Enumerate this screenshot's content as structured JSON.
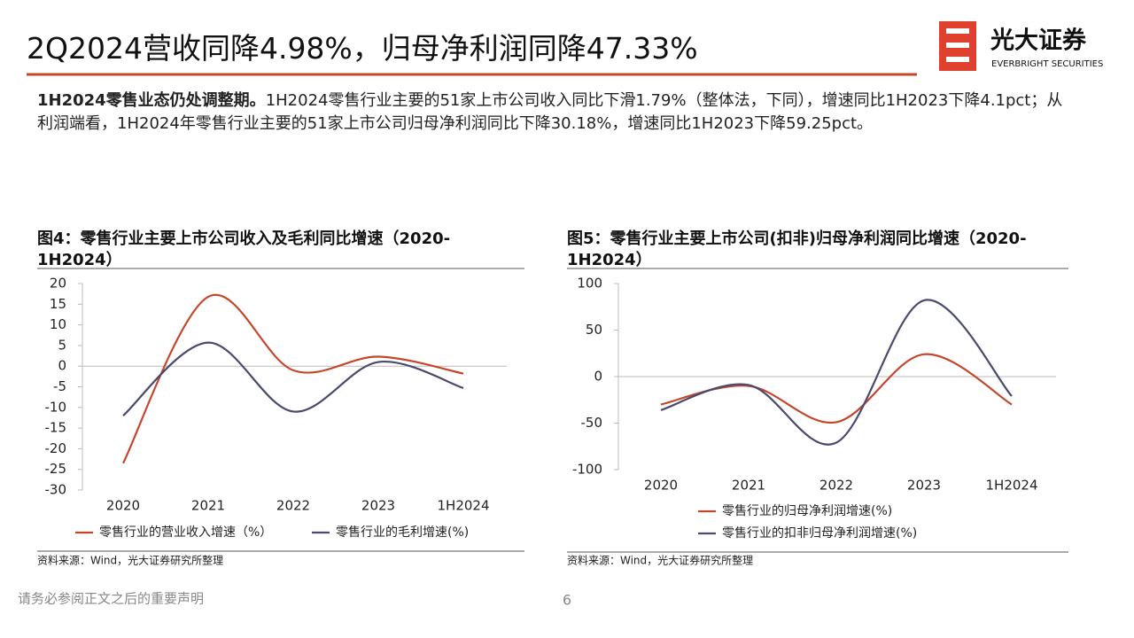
{
  "header": {
    "title": "2Q2024营收同降4.98%，归母净利润同降47.33%",
    "logo_cn": "光大证券",
    "logo_en": "EVERBRIGHT SECURITIES"
  },
  "body": {
    "lead": "1H2024零售业态仍处调整期。",
    "text": "1H2024零售行业主要的51家上市公司收入同比下滑1.79%（整体法，下同），增速同比1H2023下降4.1pct；从利润端看，1H2024年零售行业主要的51家上市公司归母净利润同比下降30.18%，增速同比1H2023下降59.25pct。"
  },
  "chart_data": [
    {
      "type": "line",
      "title": "图4：零售行业主要上市公司收入及毛利同比增速（2020-1H2024）",
      "categories": [
        "2020",
        "2021",
        "2022",
        "2023",
        "1H2024"
      ],
      "series": [
        {
          "name": "零售行业的营业收入增速（%）",
          "color": "#c5472b",
          "values": [
            -23.5,
            16.8,
            -1.0,
            2.3,
            -1.8
          ]
        },
        {
          "name": "零售行业的毛利增速(%)",
          "color": "#4a4a6e",
          "values": [
            -12,
            5.7,
            -11,
            1.0,
            -5.3
          ]
        }
      ],
      "ylim": [
        -30,
        20
      ],
      "yticks": [
        -30,
        -25,
        -20,
        -15,
        -10,
        -5,
        0,
        5,
        10,
        15,
        20
      ],
      "smooth": true,
      "source": "资料来源：Wind，光大证券研究所整理"
    },
    {
      "type": "line",
      "title": "图5：零售行业主要上市公司(扣非)归母净利润同比增速（2020-1H2024）",
      "categories": [
        "2020",
        "2021",
        "2022",
        "2023",
        "1H2024"
      ],
      "series": [
        {
          "name": "零售行业的归母净利润增速(%)",
          "color": "#c5472b",
          "values": [
            -30,
            -10,
            -49,
            24,
            -30
          ]
        },
        {
          "name": "零售行业的扣非归母净利润增速(%)",
          "color": "#4a4a6e",
          "values": [
            -36,
            -9,
            -71,
            82,
            -21
          ]
        }
      ],
      "ylim": [
        -100,
        100
      ],
      "yticks": [
        -100,
        -50,
        0,
        50,
        100
      ],
      "smooth": true,
      "source": "资料来源：Wind，光大证券研究所整理"
    }
  ],
  "footer": {
    "disclaimer": "请务必参阅正文之后的重要声明",
    "page": "6"
  }
}
